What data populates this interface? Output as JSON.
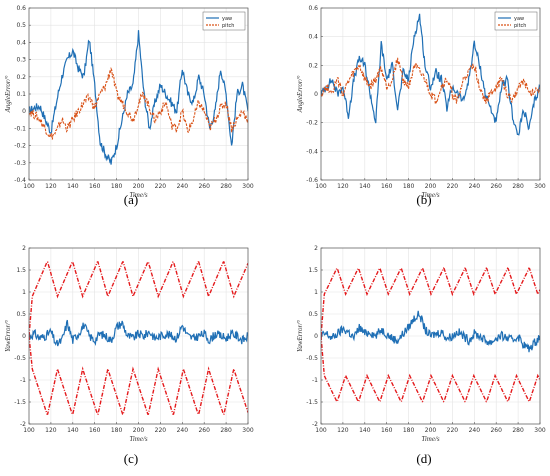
{
  "colors": {
    "blue": "#1f6fb5",
    "orange": "#d95319",
    "red": "#e41a1c"
  },
  "chart_data": [
    {
      "type": "line",
      "panel_label": "(a)",
      "xlabel": "Time/s",
      "ylabel": "AngleError/°",
      "xlim": [
        100,
        300
      ],
      "ylim": [
        -0.4,
        0.6
      ],
      "xticks": [
        100,
        120,
        140,
        160,
        180,
        200,
        220,
        240,
        260,
        280,
        300
      ],
      "yticks": [
        -0.4,
        -0.3,
        -0.2,
        -0.1,
        0,
        0.1,
        0.2,
        0.3,
        0.4,
        0.5,
        0.6
      ],
      "grid": true,
      "legend_position": "top-right",
      "series": [
        {
          "name": "yaw",
          "style": "solid",
          "color": "#1f6fb5",
          "x": [
            100,
            105,
            110,
            115,
            120,
            125,
            130,
            135,
            140,
            145,
            150,
            155,
            160,
            165,
            170,
            175,
            180,
            185,
            190,
            195,
            200,
            205,
            210,
            215,
            220,
            225,
            230,
            235,
            240,
            245,
            250,
            255,
            260,
            265,
            270,
            275,
            280,
            285,
            290,
            295,
            300
          ],
          "y": [
            0,
            0.02,
            0.03,
            -0.05,
            -0.12,
            0.05,
            0.2,
            0.3,
            0.35,
            0.25,
            0.2,
            0.42,
            0.15,
            -0.18,
            -0.25,
            -0.3,
            -0.2,
            -0.05,
            0.1,
            0.15,
            0.45,
            0.1,
            -0.1,
            0.05,
            0.15,
            0.1,
            0.05,
            0.0,
            0.25,
            0.1,
            0.05,
            0.2,
            0.1,
            -0.1,
            0.0,
            0.25,
            0.1,
            -0.2,
            0.1,
            0.15,
            0.0
          ]
        },
        {
          "name": "pitch",
          "style": "dashed",
          "color": "#d95319",
          "x": [
            100,
            105,
            110,
            115,
            120,
            125,
            130,
            135,
            140,
            145,
            150,
            155,
            160,
            165,
            170,
            175,
            180,
            185,
            190,
            195,
            200,
            205,
            210,
            215,
            220,
            225,
            230,
            235,
            240,
            245,
            250,
            255,
            260,
            265,
            270,
            275,
            280,
            285,
            290,
            295,
            300
          ],
          "y": [
            0,
            -0.02,
            -0.05,
            -0.1,
            -0.15,
            -0.12,
            -0.05,
            -0.1,
            -0.05,
            0.0,
            0.05,
            0.08,
            0.02,
            0.1,
            0.15,
            0.25,
            0.1,
            0.05,
            0.0,
            -0.05,
            0.05,
            0.1,
            0.02,
            -0.05,
            0.0,
            0.05,
            -0.08,
            -0.1,
            0.0,
            -0.12,
            -0.05,
            0.05,
            0.0,
            -0.1,
            -0.05,
            0.02,
            0.05,
            -0.1,
            -0.05,
            0.0,
            -0.05
          ]
        }
      ]
    },
    {
      "type": "line",
      "panel_label": "(b)",
      "xlabel": "Time/s",
      "ylabel": "AngleError/°",
      "xlim": [
        100,
        300
      ],
      "ylim": [
        -0.6,
        0.6
      ],
      "xticks": [
        100,
        120,
        140,
        160,
        180,
        200,
        220,
        240,
        260,
        280,
        300
      ],
      "yticks": [
        -0.6,
        -0.4,
        -0.2,
        0,
        0.2,
        0.4,
        0.6
      ],
      "grid": true,
      "legend_position": "top-right",
      "series": [
        {
          "name": "yaw",
          "style": "solid",
          "color": "#1f6fb5",
          "x": [
            100,
            105,
            110,
            115,
            120,
            125,
            130,
            135,
            140,
            145,
            150,
            155,
            160,
            165,
            170,
            175,
            180,
            185,
            190,
            195,
            200,
            205,
            210,
            215,
            220,
            225,
            230,
            235,
            240,
            245,
            250,
            255,
            260,
            265,
            270,
            275,
            280,
            285,
            290,
            295,
            300
          ],
          "y": [
            0,
            0.05,
            0.1,
            0.0,
            0.05,
            -0.15,
            0.1,
            0.25,
            0.2,
            0.0,
            -0.2,
            0.35,
            0.1,
            0.2,
            -0.1,
            0.15,
            0.1,
            0.4,
            0.55,
            0.2,
            0.05,
            0.15,
            0.1,
            -0.1,
            0.05,
            0.0,
            -0.05,
            0.1,
            0.35,
            0.2,
            0.0,
            -0.1,
            -0.2,
            0.05,
            0.1,
            -0.15,
            -0.3,
            -0.1,
            -0.25,
            -0.05,
            0.05
          ]
        },
        {
          "name": "pitch",
          "style": "dashed",
          "color": "#d95319",
          "x": [
            100,
            105,
            110,
            115,
            120,
            125,
            130,
            135,
            140,
            145,
            150,
            155,
            160,
            165,
            170,
            175,
            180,
            185,
            190,
            195,
            200,
            205,
            210,
            215,
            220,
            225,
            230,
            235,
            240,
            245,
            250,
            255,
            260,
            265,
            270,
            275,
            280,
            285,
            290,
            295,
            300
          ],
          "y": [
            0,
            0.05,
            0.02,
            0.1,
            0.0,
            0.08,
            0.15,
            0.2,
            0.1,
            0.05,
            0.1,
            0.18,
            0.05,
            0.1,
            0.25,
            0.1,
            0.05,
            0.2,
            0.15,
            0.1,
            0.0,
            -0.05,
            0.05,
            0.1,
            0.0,
            -0.05,
            0.1,
            0.15,
            0.2,
            0.05,
            -0.05,
            0.0,
            0.05,
            0.1,
            0.0,
            -0.05,
            0.05,
            0.1,
            0.0,
            0.02,
            0.05
          ]
        }
      ]
    },
    {
      "type": "line",
      "panel_label": "(c)",
      "xlabel": "Time/s",
      "ylabel": "YawError/°",
      "xlim": [
        100,
        300
      ],
      "ylim": [
        -2,
        2
      ],
      "xticks": [
        100,
        120,
        140,
        160,
        180,
        200,
        220,
        240,
        260,
        280,
        300
      ],
      "yticks": [
        -2,
        -1.5,
        -1,
        -0.5,
        0,
        0.5,
        1,
        1.5,
        2
      ],
      "grid": true,
      "series": [
        {
          "style": "solid",
          "color": "#1f6fb5",
          "x": [
            100,
            105,
            110,
            115,
            120,
            125,
            130,
            135,
            140,
            145,
            150,
            155,
            160,
            165,
            170,
            175,
            180,
            185,
            190,
            195,
            200,
            205,
            210,
            215,
            220,
            225,
            230,
            235,
            240,
            245,
            250,
            255,
            260,
            265,
            270,
            275,
            280,
            285,
            290,
            295,
            300
          ],
          "y": [
            0,
            0.05,
            -0.05,
            0.0,
            0.1,
            -0.2,
            -0.1,
            0.3,
            -0.1,
            0.05,
            0.25,
            0.0,
            -0.1,
            0.05,
            0.0,
            -0.1,
            0.2,
            0.3,
            0.0,
            -0.05,
            0.05,
            0.0,
            0.1,
            -0.05,
            0.0,
            0.05,
            0.0,
            -0.05,
            0.25,
            0.0,
            -0.05,
            0.0,
            0.05,
            -0.1,
            0.05,
            0.0,
            -0.05,
            0.05,
            0.0,
            -0.1,
            0.0
          ]
        },
        {
          "style": "dash-dot",
          "color": "#e41a1c",
          "period": 23,
          "x_start": 103,
          "upper_min": 0.9,
          "upper_max": 1.7,
          "lower_min": -1.8,
          "lower_max": -0.75
        }
      ]
    },
    {
      "type": "line",
      "panel_label": "(d)",
      "xlabel": "Time/s",
      "ylabel": "YawError/°",
      "xlim": [
        100,
        300
      ],
      "ylim": [
        -2,
        2
      ],
      "xticks": [
        100,
        120,
        140,
        160,
        180,
        200,
        220,
        240,
        260,
        280,
        300
      ],
      "yticks": [
        -2,
        -1.5,
        -1,
        -0.5,
        0,
        0.5,
        1,
        1.5,
        2
      ],
      "grid": true,
      "series": [
        {
          "style": "solid",
          "color": "#1f6fb5",
          "x": [
            100,
            105,
            110,
            115,
            120,
            125,
            130,
            135,
            140,
            145,
            150,
            155,
            160,
            165,
            170,
            175,
            180,
            185,
            190,
            195,
            200,
            205,
            210,
            215,
            220,
            225,
            230,
            235,
            240,
            245,
            250,
            255,
            260,
            265,
            270,
            275,
            280,
            285,
            290,
            295,
            300
          ],
          "y": [
            0,
            0.05,
            -0.05,
            0.05,
            0.15,
            0.1,
            -0.05,
            0.2,
            0.05,
            0.1,
            0.0,
            0.15,
            0.05,
            -0.05,
            -0.1,
            0.05,
            0.2,
            0.4,
            0.5,
            0.15,
            0.0,
            0.05,
            0.1,
            -0.05,
            0.0,
            0.1,
            0.0,
            -0.1,
            0.05,
            0.0,
            -0.1,
            -0.15,
            -0.05,
            0.0,
            -0.05,
            -0.1,
            0.0,
            -0.2,
            -0.3,
            -0.15,
            0.0
          ]
        },
        {
          "style": "dash-dot",
          "color": "#e41a1c",
          "period": 19.5,
          "x_start": 103,
          "upper_min": 0.95,
          "upper_max": 1.55,
          "lower_min": -1.5,
          "lower_max": -0.9
        }
      ]
    }
  ]
}
